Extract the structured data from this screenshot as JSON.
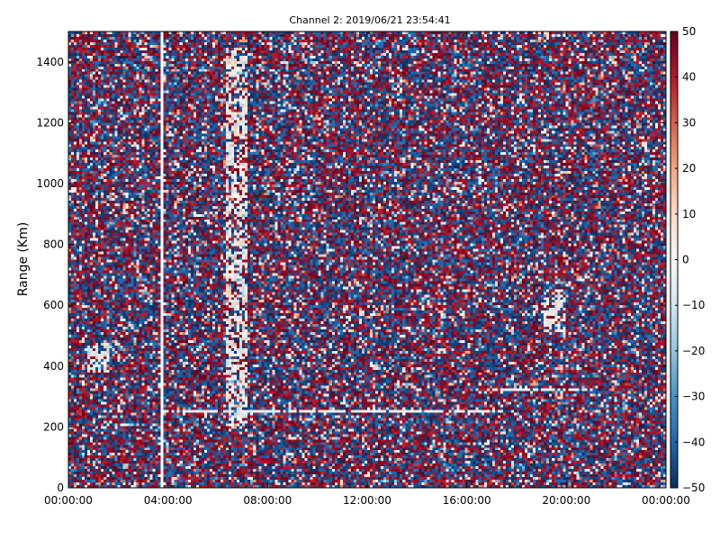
{
  "chart_data": {
    "type": "heatmap",
    "title": "Channel 2: 2019/06/21 23:54:41",
    "xlabel": "",
    "ylabel": "Range (Km)",
    "x_ticks": [
      "00:00:00",
      "04:00:00",
      "08:00:00",
      "12:00:00",
      "16:00:00",
      "20:00:00",
      "00:00:00"
    ],
    "y_ticks": [
      "0",
      "200",
      "400",
      "600",
      "800",
      "1000",
      "1200",
      "1400"
    ],
    "y_tick_values": [
      0,
      200,
      400,
      600,
      800,
      1000,
      1200,
      1400
    ],
    "xlim_hours": [
      0,
      24
    ],
    "ylim": [
      0,
      1500
    ],
    "colorbar": {
      "range": [
        -50,
        50
      ],
      "ticks": [
        "50",
        "40",
        "30",
        "20",
        "10",
        "0",
        "−10",
        "−20",
        "−30",
        "−40",
        "−50"
      ],
      "tick_values": [
        50,
        40,
        30,
        20,
        10,
        0,
        -10,
        -20,
        -30,
        -40,
        -50
      ],
      "colormap": "RdBu_r",
      "colors": [
        "#053061",
        "#2166ac",
        "#4393c3",
        "#92c5de",
        "#d1e5f0",
        "#f7f7f7",
        "#fddbc7",
        "#f4a582",
        "#d6604d",
        "#b2182b",
        "#67001f"
      ]
    },
    "grid": false,
    "features": [
      {
        "kind": "gap",
        "time_hour": 3.75
      },
      {
        "kind": "band",
        "range_km": 250,
        "from_hour": 3.75,
        "to_hour": 17.5
      },
      {
        "kind": "band",
        "range_km": 320,
        "from_hour": 17.0,
        "to_hour": 21.0
      },
      {
        "kind": "echo",
        "time_hour": 6.8,
        "range_km": [
          200,
          1450
        ]
      },
      {
        "kind": "echo",
        "time_hour": 19.5,
        "range_km": [
          500,
          650
        ]
      },
      {
        "kind": "echo",
        "time_hour": 1.2,
        "range_km": [
          380,
          480
        ]
      }
    ]
  }
}
